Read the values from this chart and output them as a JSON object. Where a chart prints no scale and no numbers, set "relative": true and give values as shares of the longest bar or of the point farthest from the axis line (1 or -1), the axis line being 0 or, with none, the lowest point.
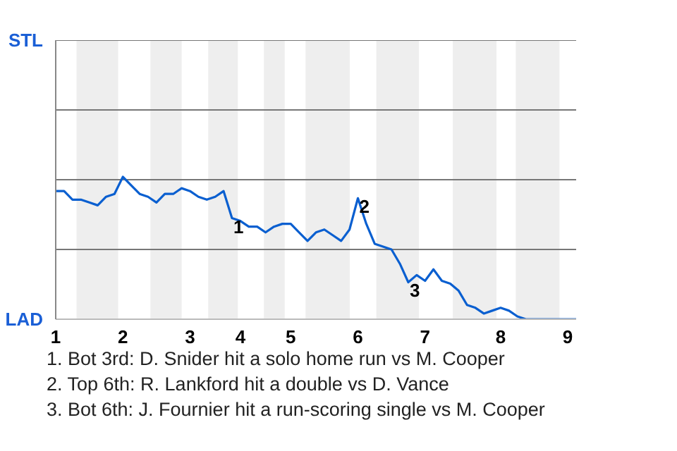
{
  "chart_data": {
    "type": "line",
    "relative": true,
    "categories": [
      "1",
      null,
      null,
      null,
      null,
      null,
      null,
      null,
      "2",
      null,
      null,
      null,
      null,
      null,
      null,
      null,
      "3",
      null,
      null,
      null,
      null,
      null,
      "4",
      null,
      null,
      null,
      null,
      null,
      "5",
      null,
      null,
      null,
      null,
      null,
      null,
      null,
      "6",
      null,
      null,
      null,
      null,
      null,
      null,
      null,
      "7",
      null,
      null,
      null,
      null,
      null,
      null,
      null,
      null,
      "8",
      null,
      null,
      null,
      null,
      null,
      null,
      null,
      "9",
      null
    ],
    "series": [
      {
        "color": "#0a5fd0",
        "values": [
          0.9,
          0.9,
          0.84,
          0.84,
          0.82,
          0.8,
          0.86,
          0.88,
          1.0,
          0.94,
          0.88,
          0.86,
          0.82,
          0.88,
          0.88,
          0.92,
          0.9,
          0.86,
          0.84,
          0.86,
          0.9,
          0.71,
          0.69,
          0.65,
          0.65,
          0.61,
          0.65,
          0.67,
          0.67,
          0.61,
          0.55,
          0.61,
          0.63,
          0.59,
          0.55,
          0.63,
          0.85,
          0.67,
          0.53,
          0.51,
          0.49,
          0.39,
          0.26,
          0.31,
          0.27,
          0.35,
          0.27,
          0.25,
          0.2,
          0.1,
          0.08,
          0.04,
          0.06,
          0.08,
          0.06,
          0.02,
          0,
          0,
          0,
          0,
          0,
          0,
          0
        ]
      }
    ],
    "ref_lines": [
      {
        "axis": "y",
        "value": 0.49,
        "color": "#777777"
      },
      {
        "axis": "y",
        "value": 0.98,
        "color": "#777777"
      },
      {
        "axis": "y",
        "value": 1.47,
        "color": "#777777"
      },
      {
        "axis": "y",
        "value": 1.96,
        "color": "#777777"
      }
    ],
    "annotations": [
      "STL",
      "LAD",
      {
        "text": "1",
        "y": 0.71
      },
      {
        "text": "2",
        "y": 0.85
      },
      {
        "text": "3",
        "y": 0.26
      },
      "1. Bot 3rd: D. Snider hit a solo home run vs M. Cooper",
      "2. Top 6th: R. Lankford hit a double vs D. Vance",
      "3. Bot 6th: J. Fournier hit a run-scoring single vs M. Cooper"
    ]
  }
}
